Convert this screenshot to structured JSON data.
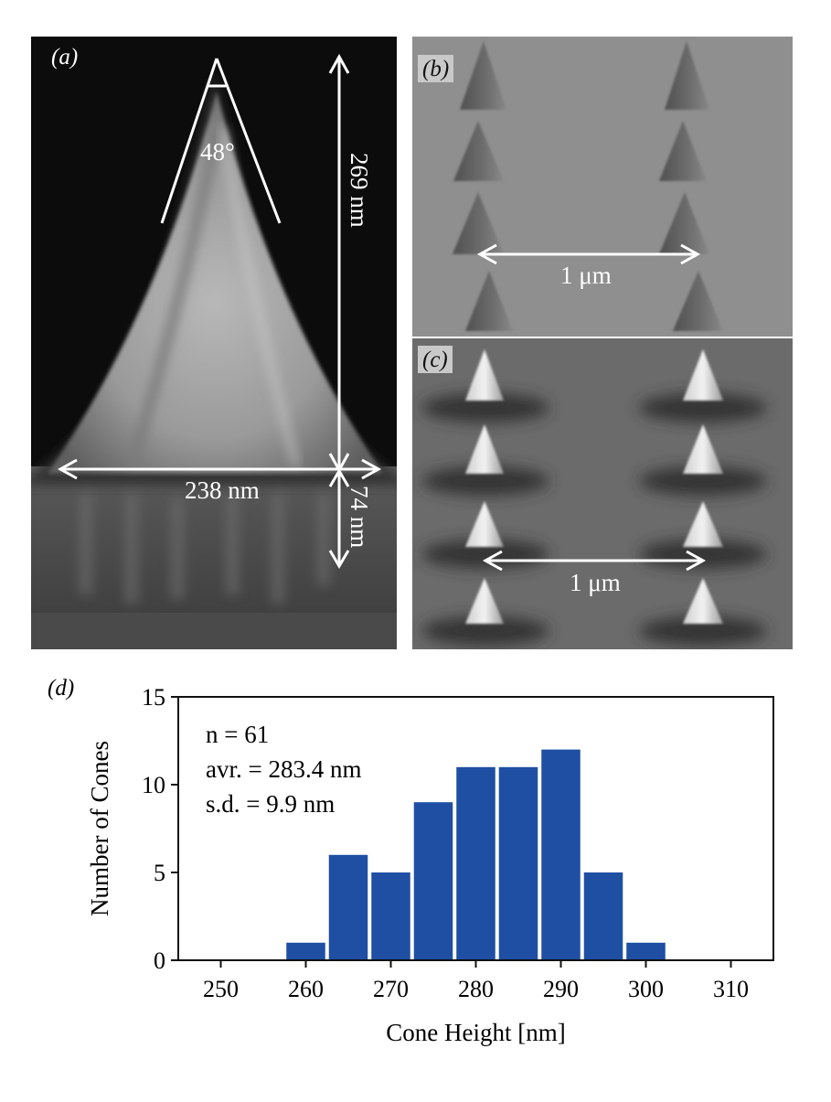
{
  "panels": {
    "a": {
      "label": "(a)",
      "apex_angle": "48°",
      "height_label": "269 nm",
      "base_width_label": "238 nm",
      "pedestal_label": "74 nm"
    },
    "b": {
      "label": "(b)",
      "scale_label": "1 μm"
    },
    "c": {
      "label": "(c)",
      "scale_label": "1 μm"
    },
    "d": {
      "label": "(d)"
    }
  },
  "chart_data": {
    "type": "bar",
    "xlabel": "Cone Height [nm]",
    "ylabel": "Number of Cones",
    "xlim": [
      245,
      315
    ],
    "ylim": [
      0,
      15
    ],
    "xticks": [
      250,
      260,
      270,
      280,
      290,
      300,
      310
    ],
    "yticks": [
      0,
      5,
      10,
      15
    ],
    "bin_edges": [
      257.5,
      262.5,
      267.5,
      272.5,
      277.5,
      282.5,
      287.5,
      292.5,
      297.5,
      302.5
    ],
    "values": [
      1,
      6,
      5,
      9,
      11,
      11,
      12,
      5,
      1
    ],
    "bar_color": "#1f4fa3",
    "annotations": [
      "n = 61",
      "avr. = 283.4 nm",
      "s.d. = 9.9 nm"
    ]
  }
}
